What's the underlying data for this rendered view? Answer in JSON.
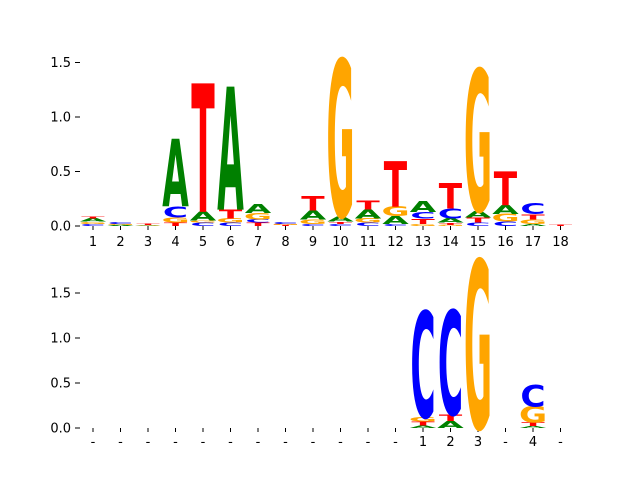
{
  "colors": {
    "A": "#008000",
    "C": "#0000ff",
    "G": "#ffa500",
    "T": "#ff0000"
  },
  "chart_data": [
    {
      "type": "sequence-logo",
      "title": "",
      "xlabel": "",
      "ylabel": "",
      "ylim": [
        0,
        1.6
      ],
      "yticks": [
        "0.0",
        "0.5",
        "1.0",
        "1.5"
      ],
      "ytick_values": [
        0,
        0.5,
        1.0,
        1.5
      ],
      "xtick_labels": [
        "1",
        "2",
        "3",
        "4",
        "5",
        "6",
        "7",
        "8",
        "9",
        "10",
        "11",
        "12",
        "13",
        "14",
        "15",
        "16",
        "17",
        "18"
      ],
      "columns": [
        [
          [
            "C",
            0.02
          ],
          [
            "G",
            0.02
          ],
          [
            "A",
            0.03
          ],
          [
            "T",
            0.02
          ]
        ],
        [
          [
            "A",
            0.01
          ],
          [
            "G",
            0.01
          ],
          [
            "C",
            0.02
          ]
        ],
        [
          [
            "A",
            0.005
          ],
          [
            "G",
            0.005
          ],
          [
            "T",
            0.01
          ]
        ],
        [
          [
            "T",
            0.03
          ],
          [
            "G",
            0.05
          ],
          [
            "C",
            0.1
          ],
          [
            "A",
            0.62
          ]
        ],
        [
          [
            "C",
            0.03
          ],
          [
            "G",
            0.02
          ],
          [
            "A",
            0.08
          ],
          [
            "T",
            1.18
          ]
        ],
        [
          [
            "C",
            0.03
          ],
          [
            "G",
            0.04
          ],
          [
            "T",
            0.08
          ],
          [
            "A",
            1.13
          ]
        ],
        [
          [
            "T",
            0.03
          ],
          [
            "C",
            0.03
          ],
          [
            "G",
            0.06
          ],
          [
            "A",
            0.08
          ]
        ],
        [
          [
            "T",
            0.01
          ],
          [
            "G",
            0.01
          ],
          [
            "C",
            0.02
          ]
        ],
        [
          [
            "C",
            0.02
          ],
          [
            "G",
            0.04
          ],
          [
            "A",
            0.08
          ],
          [
            "T",
            0.13
          ]
        ],
        [
          [
            "C",
            0.02
          ],
          [
            "T",
            0.02
          ],
          [
            "A",
            0.05
          ],
          [
            "G",
            1.44
          ]
        ],
        [
          [
            "C",
            0.03
          ],
          [
            "G",
            0.04
          ],
          [
            "A",
            0.08
          ],
          [
            "T",
            0.08
          ]
        ],
        [
          [
            "C",
            0.02
          ],
          [
            "A",
            0.07
          ],
          [
            "G",
            0.09
          ],
          [
            "T",
            0.42
          ]
        ],
        [
          [
            "G",
            0.02
          ],
          [
            "T",
            0.05
          ],
          [
            "C",
            0.06
          ],
          [
            "A",
            0.1
          ]
        ],
        [
          [
            "G",
            0.01
          ],
          [
            "T",
            0.02
          ],
          [
            "A",
            0.04
          ],
          [
            "C",
            0.09
          ],
          [
            "T",
            0.23
          ]
        ],
        [
          [
            "C",
            0.03
          ],
          [
            "T",
            0.05
          ],
          [
            "A",
            0.06
          ],
          [
            "G",
            1.3
          ]
        ],
        [
          [
            "C",
            0.04
          ],
          [
            "G",
            0.07
          ],
          [
            "A",
            0.08
          ],
          [
            "T",
            0.31
          ]
        ],
        [
          [
            "A",
            0.02
          ],
          [
            "G",
            0.04
          ],
          [
            "T",
            0.05
          ],
          [
            "C",
            0.1
          ]
        ],
        [
          [
            "T",
            0.01
          ]
        ]
      ]
    },
    {
      "type": "sequence-logo",
      "title": "",
      "xlabel": "",
      "ylabel": "",
      "ylim": [
        0,
        2.0
      ],
      "yticks": [
        "0.0",
        "0.5",
        "1.0",
        "1.5"
      ],
      "ytick_values": [
        0,
        0.5,
        1.0,
        1.5
      ],
      "xtick_labels": [
        "-",
        "-",
        "-",
        "-",
        "-",
        "-",
        "-",
        "-",
        "-",
        "-",
        "-",
        "-",
        "1",
        "2",
        "3",
        "-",
        "4",
        "-"
      ],
      "columns": [
        [],
        [],
        [],
        [],
        [],
        [],
        [],
        [],
        [],
        [],
        [],
        [],
        [
          [
            "A",
            0.03
          ],
          [
            "T",
            0.04
          ],
          [
            "G",
            0.05
          ],
          [
            "C",
            1.18
          ]
        ],
        [
          [
            "A",
            0.08
          ],
          [
            "T",
            0.07
          ],
          [
            "C",
            1.16
          ]
        ],
        [
          [
            "G",
            1.87
          ]
        ],
        [],
        [
          [
            "A",
            0.02
          ],
          [
            "T",
            0.04
          ],
          [
            "G",
            0.18
          ],
          [
            "C",
            0.24
          ]
        ],
        []
      ]
    }
  ]
}
